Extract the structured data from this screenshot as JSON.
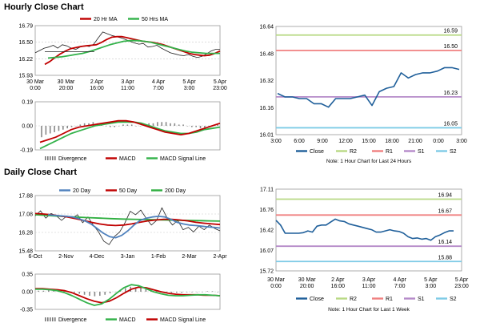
{
  "sections": {
    "hourly": "Hourly Close Chart",
    "daily": "Daily Close Chart"
  },
  "colors": {
    "ma_short": "#c00000",
    "ma_long": "#33b24a",
    "ma_200": "#2eae3f",
    "ma_20d": "#4f81bd",
    "macd": "#c00000",
    "signal": "#33b24a",
    "close": "#1f5f9a",
    "r2": "#b8d984",
    "r1": "#f08080",
    "s1": "#b58ac9",
    "s2": "#7ecbe6"
  },
  "chart_data": [
    {
      "id": "hourly_price",
      "type": "line",
      "title": "Hourly Close Chart",
      "legend": [
        "20 Hr MA",
        "50 Hrs MA"
      ],
      "yticks": [
        "16.79",
        "16.50",
        "16.22",
        "15.93"
      ],
      "ylim": [
        15.93,
        16.79
      ],
      "xticks": [
        [
          "30 Mar",
          "0:00"
        ],
        [
          "30 Mar",
          "20:00"
        ],
        [
          "2 Apr",
          "16:00"
        ],
        [
          "3 Apr",
          "11:00"
        ],
        [
          "4 Apr",
          "7:00"
        ],
        [
          "5 Apr",
          "3:00"
        ],
        [
          "5 Apr",
          "23:00"
        ]
      ],
      "series": [
        {
          "name": "Close",
          "values": [
            16.32,
            16.36,
            16.4,
            16.42,
            16.45,
            16.4,
            16.46,
            16.44,
            16.4,
            16.38,
            16.42,
            16.44,
            16.43,
            16.47,
            16.58,
            16.68,
            16.65,
            16.62,
            16.6,
            16.58,
            16.55,
            16.52,
            16.49,
            16.47,
            16.48,
            16.42,
            16.43,
            16.45,
            16.4,
            16.36,
            16.32,
            16.3,
            16.28,
            16.27,
            16.29,
            16.26,
            16.24,
            16.26,
            16.3,
            16.35,
            16.38,
            16.38
          ]
        },
        {
          "name": "20 Hr MA",
          "values": [
            16.12,
            16.17,
            16.24,
            16.3,
            16.35,
            16.39,
            16.41,
            16.43,
            16.44,
            16.45,
            16.46,
            16.5,
            16.55,
            16.59,
            16.6,
            16.6,
            16.58,
            16.56,
            16.54,
            16.52,
            16.51,
            16.5,
            16.48,
            16.46,
            16.43,
            16.4,
            16.37,
            16.34,
            16.31,
            16.29,
            16.28,
            16.27,
            16.28,
            16.31,
            16.35
          ]
        },
        {
          "name": "50 Hrs MA",
          "values": [
            16.23,
            16.24,
            16.25,
            16.27,
            16.29,
            16.31,
            16.34,
            16.38,
            16.42,
            16.46,
            16.49,
            16.52,
            16.53,
            16.53,
            16.52,
            16.5,
            16.47,
            16.44,
            16.41,
            16.38,
            16.35,
            16.33,
            16.32,
            16.31,
            16.31,
            16.31
          ]
        },
        {
          "name": "Level",
          "values": [
            16.34,
            16.34,
            16.34,
            16.34,
            16.34,
            16.34,
            16.34,
            16.34,
            16.34,
            16.34
          ]
        }
      ]
    },
    {
      "id": "hourly_macd",
      "type": "line",
      "legend": [
        "Divergence",
        "MACD",
        "MACD Signal Line"
      ],
      "yticks": [
        "0.19",
        "0.00",
        "-0.19"
      ],
      "ylim": [
        -0.19,
        0.19
      ],
      "series": [
        {
          "name": "Divergence",
          "values": [
            -0.09,
            -0.07,
            -0.06,
            -0.05,
            -0.04,
            -0.03,
            -0.02,
            -0.01,
            0.0,
            0.01,
            0.02,
            0.02,
            0.03,
            0.02,
            0.01,
            0.0,
            -0.01,
            -0.01,
            0.0,
            0.01,
            0.01,
            0.01,
            0.0,
            0.0,
            0.01,
            0.02,
            0.02,
            0.03,
            0.03,
            0.03,
            0.02,
            0.02,
            0.01,
            0.01,
            0.0,
            -0.01,
            -0.01,
            -0.02,
            -0.02,
            -0.01,
            0.0,
            0.01
          ]
        },
        {
          "name": "MACD",
          "values": [
            -0.13,
            -0.11,
            -0.09,
            -0.06,
            -0.03,
            -0.01,
            0.0,
            0.01,
            0.02,
            0.03,
            0.04,
            0.04,
            0.03,
            0.01,
            -0.01,
            -0.03,
            -0.05,
            -0.06,
            -0.07,
            -0.06,
            -0.04,
            -0.02,
            0.0,
            0.02
          ]
        },
        {
          "name": "MACD Signal Line",
          "values": [
            -0.18,
            -0.15,
            -0.12,
            -0.09,
            -0.06,
            -0.04,
            -0.02,
            0.0,
            0.01,
            0.02,
            0.03,
            0.03,
            0.03,
            0.02,
            0.0,
            -0.02,
            -0.04,
            -0.05,
            -0.06,
            -0.06,
            -0.05,
            -0.03,
            -0.02,
            -0.01
          ]
        }
      ]
    },
    {
      "id": "hourly_close",
      "type": "line",
      "note": "Note: 1 Hour Chart for Last 24 Hours",
      "yticks": [
        "16.64",
        "16.48",
        "16.32",
        "16.16",
        "16.01"
      ],
      "ylim": [
        16.01,
        16.64
      ],
      "xticks": [
        "3:00",
        "6:00",
        "9:00",
        "12:00",
        "15:00",
        "18:00",
        "21:00",
        "0:00",
        "3:00"
      ],
      "levels": [
        {
          "name": "R2",
          "value": 16.59,
          "label": "16.59"
        },
        {
          "name": "R1",
          "value": 16.5,
          "label": "16.50"
        },
        {
          "name": "S1",
          "value": 16.23,
          "label": "16.23"
        },
        {
          "name": "S2",
          "value": 16.05,
          "label": "16.05"
        }
      ],
      "legend": [
        "Close",
        "R2",
        "R1",
        "S1",
        "S2"
      ],
      "series": [
        {
          "name": "Close",
          "values": [
            16.25,
            16.23,
            16.23,
            16.22,
            16.22,
            16.19,
            16.19,
            16.17,
            16.22,
            16.22,
            16.22,
            16.23,
            16.24,
            16.18,
            16.26,
            16.28,
            16.29,
            16.37,
            16.34,
            16.36,
            16.37,
            16.37,
            16.38,
            16.4,
            16.4,
            16.39
          ]
        }
      ]
    },
    {
      "id": "daily_price",
      "type": "line",
      "title": "Daily Close Chart",
      "legend": [
        "20 Day",
        "50 Day",
        "200 Day"
      ],
      "yticks": [
        "17.88",
        "17.08",
        "16.28",
        "15.48"
      ],
      "ylim": [
        15.48,
        17.88
      ],
      "xticks": [
        "6-Oct",
        "2-Nov",
        "4-Dec",
        "3-Jan",
        "1-Feb",
        "2-Mar",
        "2-Apr"
      ],
      "series": [
        {
          "name": "Close",
          "values": [
            17.0,
            17.22,
            16.9,
            17.1,
            17.0,
            16.8,
            17.0,
            16.9,
            17.05,
            16.7,
            16.95,
            16.6,
            16.3,
            15.9,
            15.75,
            16.1,
            16.3,
            16.7,
            17.2,
            17.05,
            17.25,
            16.9,
            16.6,
            16.8,
            17.35,
            16.9,
            16.6,
            16.8,
            16.4,
            16.5,
            16.3,
            16.55,
            16.4,
            16.6,
            16.45,
            16.35
          ]
        },
        {
          "name": "20 Day",
          "values": [
            17.05,
            17.02,
            17.0,
            16.98,
            16.95,
            16.88,
            16.78,
            16.65,
            16.45,
            16.25,
            16.1,
            16.05,
            16.15,
            16.35,
            16.6,
            16.8,
            16.9,
            16.95,
            16.98,
            16.95,
            16.85,
            16.72,
            16.65,
            16.6,
            16.58,
            16.55,
            16.52,
            16.5,
            16.47
          ]
        },
        {
          "name": "50 Day",
          "values": [
            17.1,
            17.08,
            17.05,
            17.0,
            16.95,
            16.88,
            16.8,
            16.72,
            16.65,
            16.6,
            16.58,
            16.6,
            16.65,
            16.72,
            16.78,
            16.82,
            16.85,
            16.85,
            16.82,
            16.78,
            16.72,
            16.68,
            16.65,
            16.62
          ]
        },
        {
          "name": "200 Day",
          "values": [
            17.05,
            17.02,
            16.99,
            16.96,
            16.94,
            16.92,
            16.9,
            16.88,
            16.86,
            16.85,
            16.84,
            16.83,
            16.82,
            16.81,
            16.8,
            16.79,
            16.78,
            16.77
          ]
        }
      ]
    },
    {
      "id": "daily_macd",
      "type": "line",
      "legend": [
        "Divergence",
        "MACD",
        "MACD Signal Line"
      ],
      "yticks": [
        "0.35",
        "0.00",
        "-0.35"
      ],
      "ylim": [
        -0.35,
        0.35
      ],
      "series": [
        {
          "name": "Divergence",
          "values": [
            0.02,
            0.02,
            0.03,
            0.03,
            0.02,
            0.01,
            0.0,
            -0.02,
            -0.04,
            -0.06,
            -0.08,
            -0.09,
            -0.08,
            -0.06,
            -0.03,
            0.0,
            0.04,
            0.07,
            0.1,
            0.09,
            0.07,
            0.05,
            0.03,
            0.01,
            0.0,
            -0.01,
            -0.02,
            -0.02,
            -0.02,
            -0.01,
            -0.01,
            0.0,
            0.0,
            0.01,
            0.01,
            0.0
          ]
        },
        {
          "name": "MACD",
          "values": [
            0.05,
            0.05,
            0.04,
            0.02,
            -0.02,
            -0.08,
            -0.15,
            -0.22,
            -0.27,
            -0.24,
            -0.15,
            -0.03,
            0.08,
            0.14,
            0.12,
            0.06,
            0.0,
            -0.04,
            -0.07,
            -0.08,
            -0.08,
            -0.07,
            -0.06,
            -0.06,
            -0.07,
            -0.08
          ]
        },
        {
          "name": "MACD Signal Line",
          "values": [
            0.06,
            0.06,
            0.05,
            0.04,
            0.02,
            -0.02,
            -0.08,
            -0.14,
            -0.19,
            -0.22,
            -0.19,
            -0.12,
            -0.03,
            0.05,
            0.09,
            0.08,
            0.04,
            0.0,
            -0.03,
            -0.05,
            -0.06,
            -0.06,
            -0.06,
            -0.07,
            -0.07,
            -0.08
          ]
        }
      ]
    },
    {
      "id": "daily_close",
      "type": "line",
      "note": "Note: 1 Hour Chart for Last 1 Week",
      "yticks": [
        "17.11",
        "16.76",
        "16.42",
        "16.07",
        "15.72"
      ],
      "ylim": [
        15.72,
        17.11
      ],
      "xticks": [
        [
          "30 Mar",
          "0:00"
        ],
        [
          "30 Mar",
          "20:00"
        ],
        [
          "2 Apr",
          "16:00"
        ],
        [
          "3 Apr",
          "11:00"
        ],
        [
          "4 Apr",
          "7:00"
        ],
        [
          "5 Apr",
          "3:00"
        ],
        [
          "5 Apr",
          "23:00"
        ]
      ],
      "levels": [
        {
          "name": "R2",
          "value": 16.94,
          "label": "16.94"
        },
        {
          "name": "R1",
          "value": 16.67,
          "label": "16.67"
        },
        {
          "name": "S1",
          "value": 16.14,
          "label": "16.14"
        },
        {
          "name": "S2",
          "value": 15.88,
          "label": "15.88"
        }
      ],
      "legend": [
        "Close",
        "R2",
        "R1",
        "S1",
        "S2"
      ],
      "series": [
        {
          "name": "Close",
          "values": [
            16.58,
            16.5,
            16.36,
            16.36,
            16.36,
            16.36,
            16.37,
            16.4,
            16.38,
            16.48,
            16.5,
            16.5,
            16.55,
            16.6,
            16.57,
            16.56,
            16.52,
            16.5,
            16.48,
            16.46,
            16.44,
            16.42,
            16.38,
            16.38,
            16.4,
            16.42,
            16.4,
            16.39,
            16.36,
            16.3,
            16.27,
            16.28,
            16.26,
            16.27,
            16.24,
            16.3,
            16.33,
            16.37,
            16.4,
            16.4
          ]
        }
      ]
    }
  ]
}
